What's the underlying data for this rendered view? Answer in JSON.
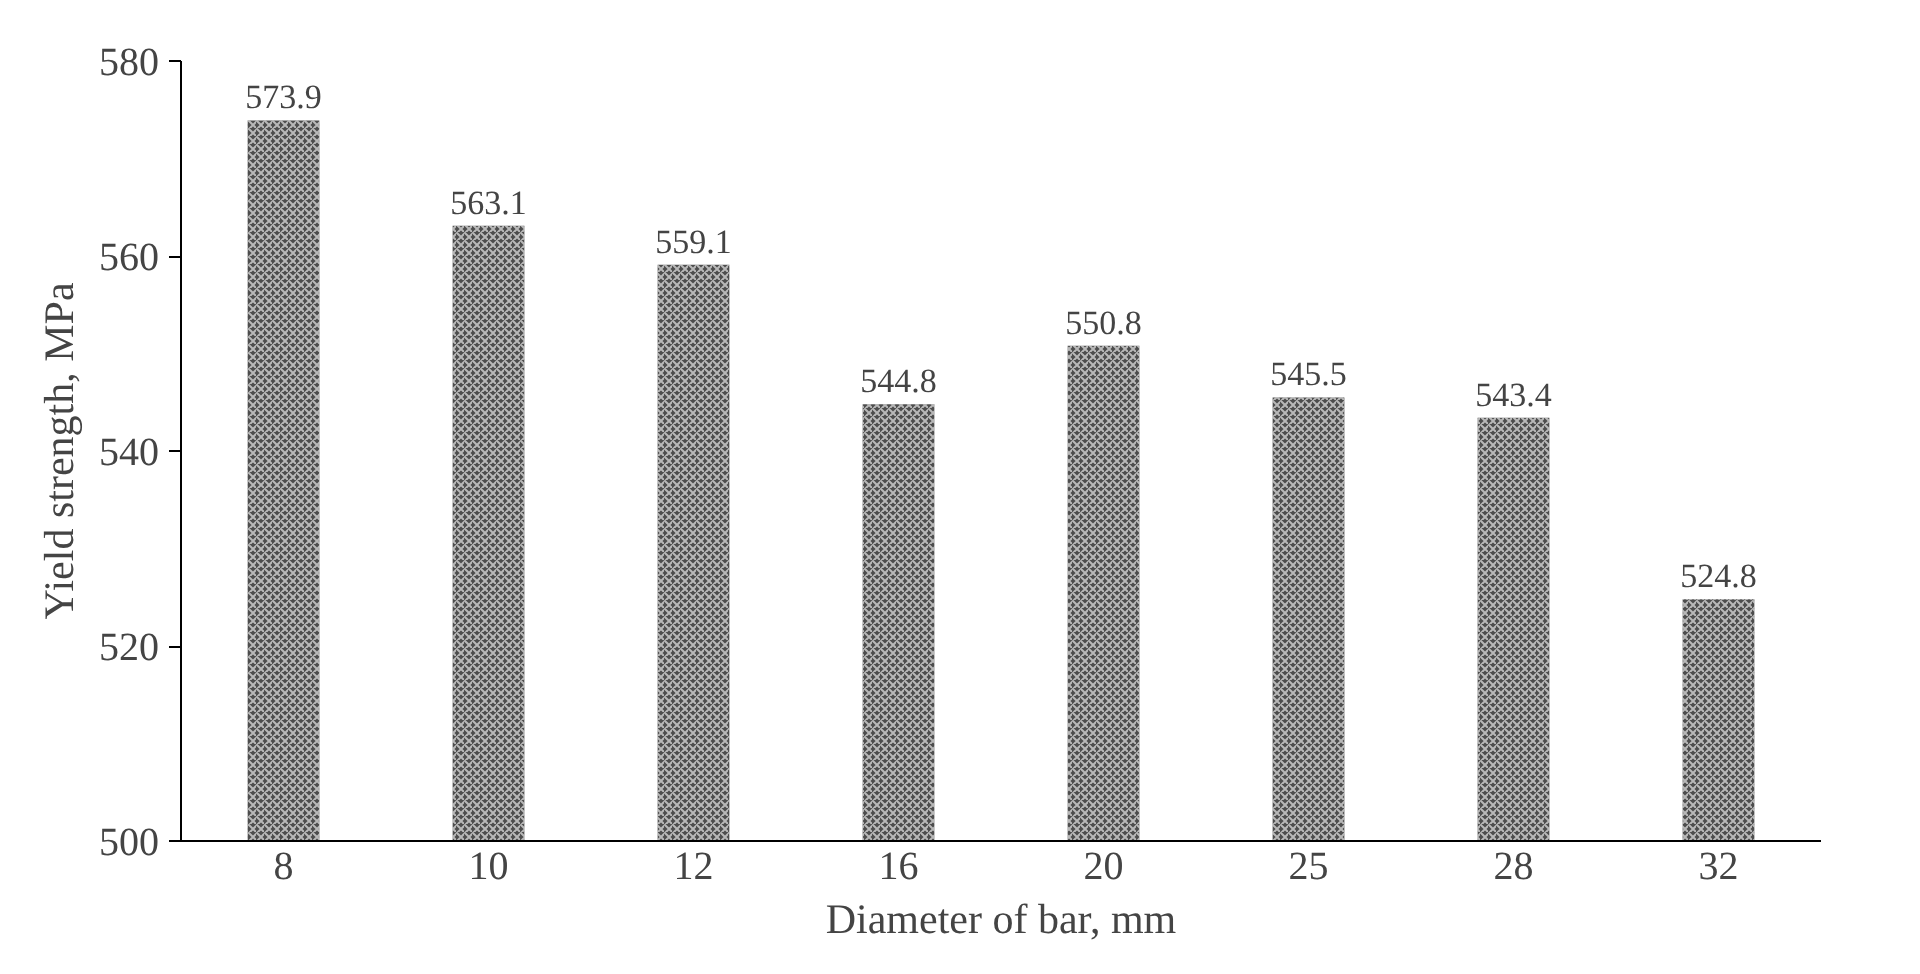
{
  "chart_data": {
    "type": "bar",
    "xlabel": "Diameter of bar, mm",
    "ylabel": "Yield strength, MPa",
    "categories": [
      "8",
      "10",
      "12",
      "16",
      "20",
      "25",
      "28",
      "32"
    ],
    "values": [
      573.9,
      563.1,
      559.1,
      544.8,
      550.8,
      545.5,
      543.4,
      524.8
    ],
    "color": "#4d4d4d",
    "ylim": [
      500,
      580
    ],
    "yticks": [
      500,
      520,
      540,
      560,
      580
    ],
    "data_labels": true,
    "grid": false
  }
}
